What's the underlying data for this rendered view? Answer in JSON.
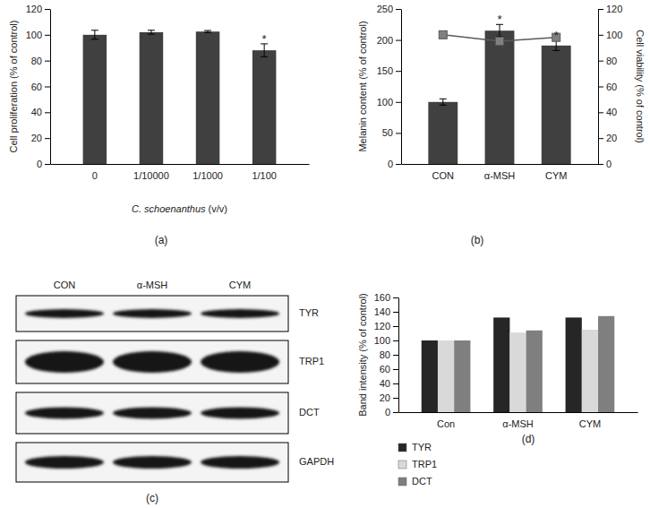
{
  "chart_data": [
    {
      "type": "bar",
      "panel": "(a)",
      "categories": [
        "0",
        "1/10000",
        "1/1000",
        "1/100"
      ],
      "values": [
        100,
        102,
        102.5,
        88
      ],
      "errors": [
        3.5,
        1.5,
        0.8,
        5
      ],
      "color": "#404040",
      "xlabel": "C. schoenanthus (v/v)",
      "ylabel": "Cell proliferation (% of control)",
      "ylim": [
        0,
        120
      ],
      "yticks": [
        0,
        20,
        40,
        60,
        80,
        100,
        120
      ],
      "annotations": [
        {
          "text": "*",
          "category": "1/100"
        }
      ]
    },
    {
      "type": "bar",
      "panel": "(b)",
      "categories": [
        "CON",
        "α-MSH",
        "CYM"
      ],
      "series": [
        {
          "type": "bar",
          "color": "#404040",
          "values": [
            100,
            215,
            191
          ],
          "errors": [
            5,
            10,
            8
          ]
        },
        {
          "type": "line",
          "axis": "y2",
          "color": "#595959",
          "marker": "square",
          "values": [
            100,
            95,
            98
          ]
        }
      ],
      "ylabel": "Melanin content (% of control)",
      "y2label": "Cell viability (% of control)",
      "ylim": [
        0,
        250
      ],
      "yticks": [
        0,
        50,
        100,
        150,
        200,
        250
      ],
      "y2lim": [
        0,
        120
      ],
      "y2ticks": [
        0,
        20,
        40,
        60,
        80,
        100,
        120
      ],
      "annotations": [
        {
          "text": "*",
          "category": "α-MSH"
        },
        {
          "text": "*",
          "category": "CYM"
        }
      ]
    },
    {
      "type": "blot",
      "panel": "(c)",
      "categories": [
        "CON",
        "α-MSH",
        "CYM"
      ],
      "bands": [
        "TYR",
        "TRP1",
        "DCT",
        "GAPDH"
      ]
    },
    {
      "type": "bar",
      "panel": "(d)",
      "categories": [
        "Con",
        "α-MSH",
        "CYM"
      ],
      "series": [
        {
          "name": "TYR",
          "color": "#262626",
          "values": [
            100,
            132,
            132
          ]
        },
        {
          "name": "TRP1",
          "color": "#d9d9d9",
          "values": [
            100,
            111,
            115
          ]
        },
        {
          "name": "DCT",
          "color": "#7f7f7f",
          "values": [
            100,
            114,
            134
          ]
        }
      ],
      "ylabel": "Band intensity (% of control)",
      "ylim": [
        0,
        160
      ],
      "yticks": [
        0,
        20,
        40,
        60,
        80,
        100,
        120,
        140,
        160
      ],
      "legend": "bottom-left"
    }
  ]
}
